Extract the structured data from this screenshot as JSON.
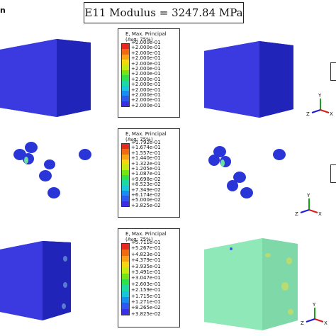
{
  "corner_text": "n",
  "title": "E11 Modulus = 3247.84 MPa",
  "legends": [
    {
      "header_line1": "E, Max. Principal",
      "header_line2": "(Avg: 75%)",
      "ticks": [
        "+2.000e-01",
        "+2.000e-01",
        "+2.000e-01",
        "+2.000e-01",
        "+2.000e-01",
        "+2.000e-01",
        "+2.000e-01",
        "+2.000e-01",
        "+2.000e-01",
        "+2.000e-01",
        "+2.000e-01",
        "+2.000e-01",
        "+2.000e-01"
      ]
    },
    {
      "header_line1": "E, Max. Principal",
      "header_line2": "(Avg: 75%)",
      "ticks": [
        "+1.792e-01",
        "+1.674e-01",
        "+1.557e-01",
        "+1.440e-01",
        "+1.322e-01",
        "+1.205e-01",
        "+1.087e-01",
        "+9.698e-02",
        "+8.523e-02",
        "+7.349e-02",
        "+6.174e-02",
        "+5.000e-02",
        "+3.825e-02"
      ]
    },
    {
      "header_line1": "E, Max. Principal",
      "header_line2": "(Avg: 75%)",
      "ticks": [
        "+5.711e-01",
        "+5.267e-01",
        "+4.823e-01",
        "+4.379e-01",
        "+3.935e-01",
        "+3.491e-01",
        "+3.047e-01",
        "+2.603e-01",
        "+2.159e-01",
        "+1.715e-01",
        "+1.271e-01",
        "+8.265e-02",
        "+3.825e-02"
      ]
    }
  ],
  "legend_colors": [
    "#e8281e",
    "#f06a12",
    "#f8a214",
    "#f4d80e",
    "#c4ea12",
    "#74e414",
    "#2ee04a",
    "#1cd8a2",
    "#18c6dc",
    "#1a8ef0",
    "#2c5af0",
    "#3a2ee6"
  ],
  "triad": {
    "x": "X",
    "y": "Y",
    "z": "Z"
  },
  "colors": {
    "solid_blue": "#3a3ae0",
    "mint": "#8fe8b8",
    "sphere_blue": "#2a35d8"
  }
}
